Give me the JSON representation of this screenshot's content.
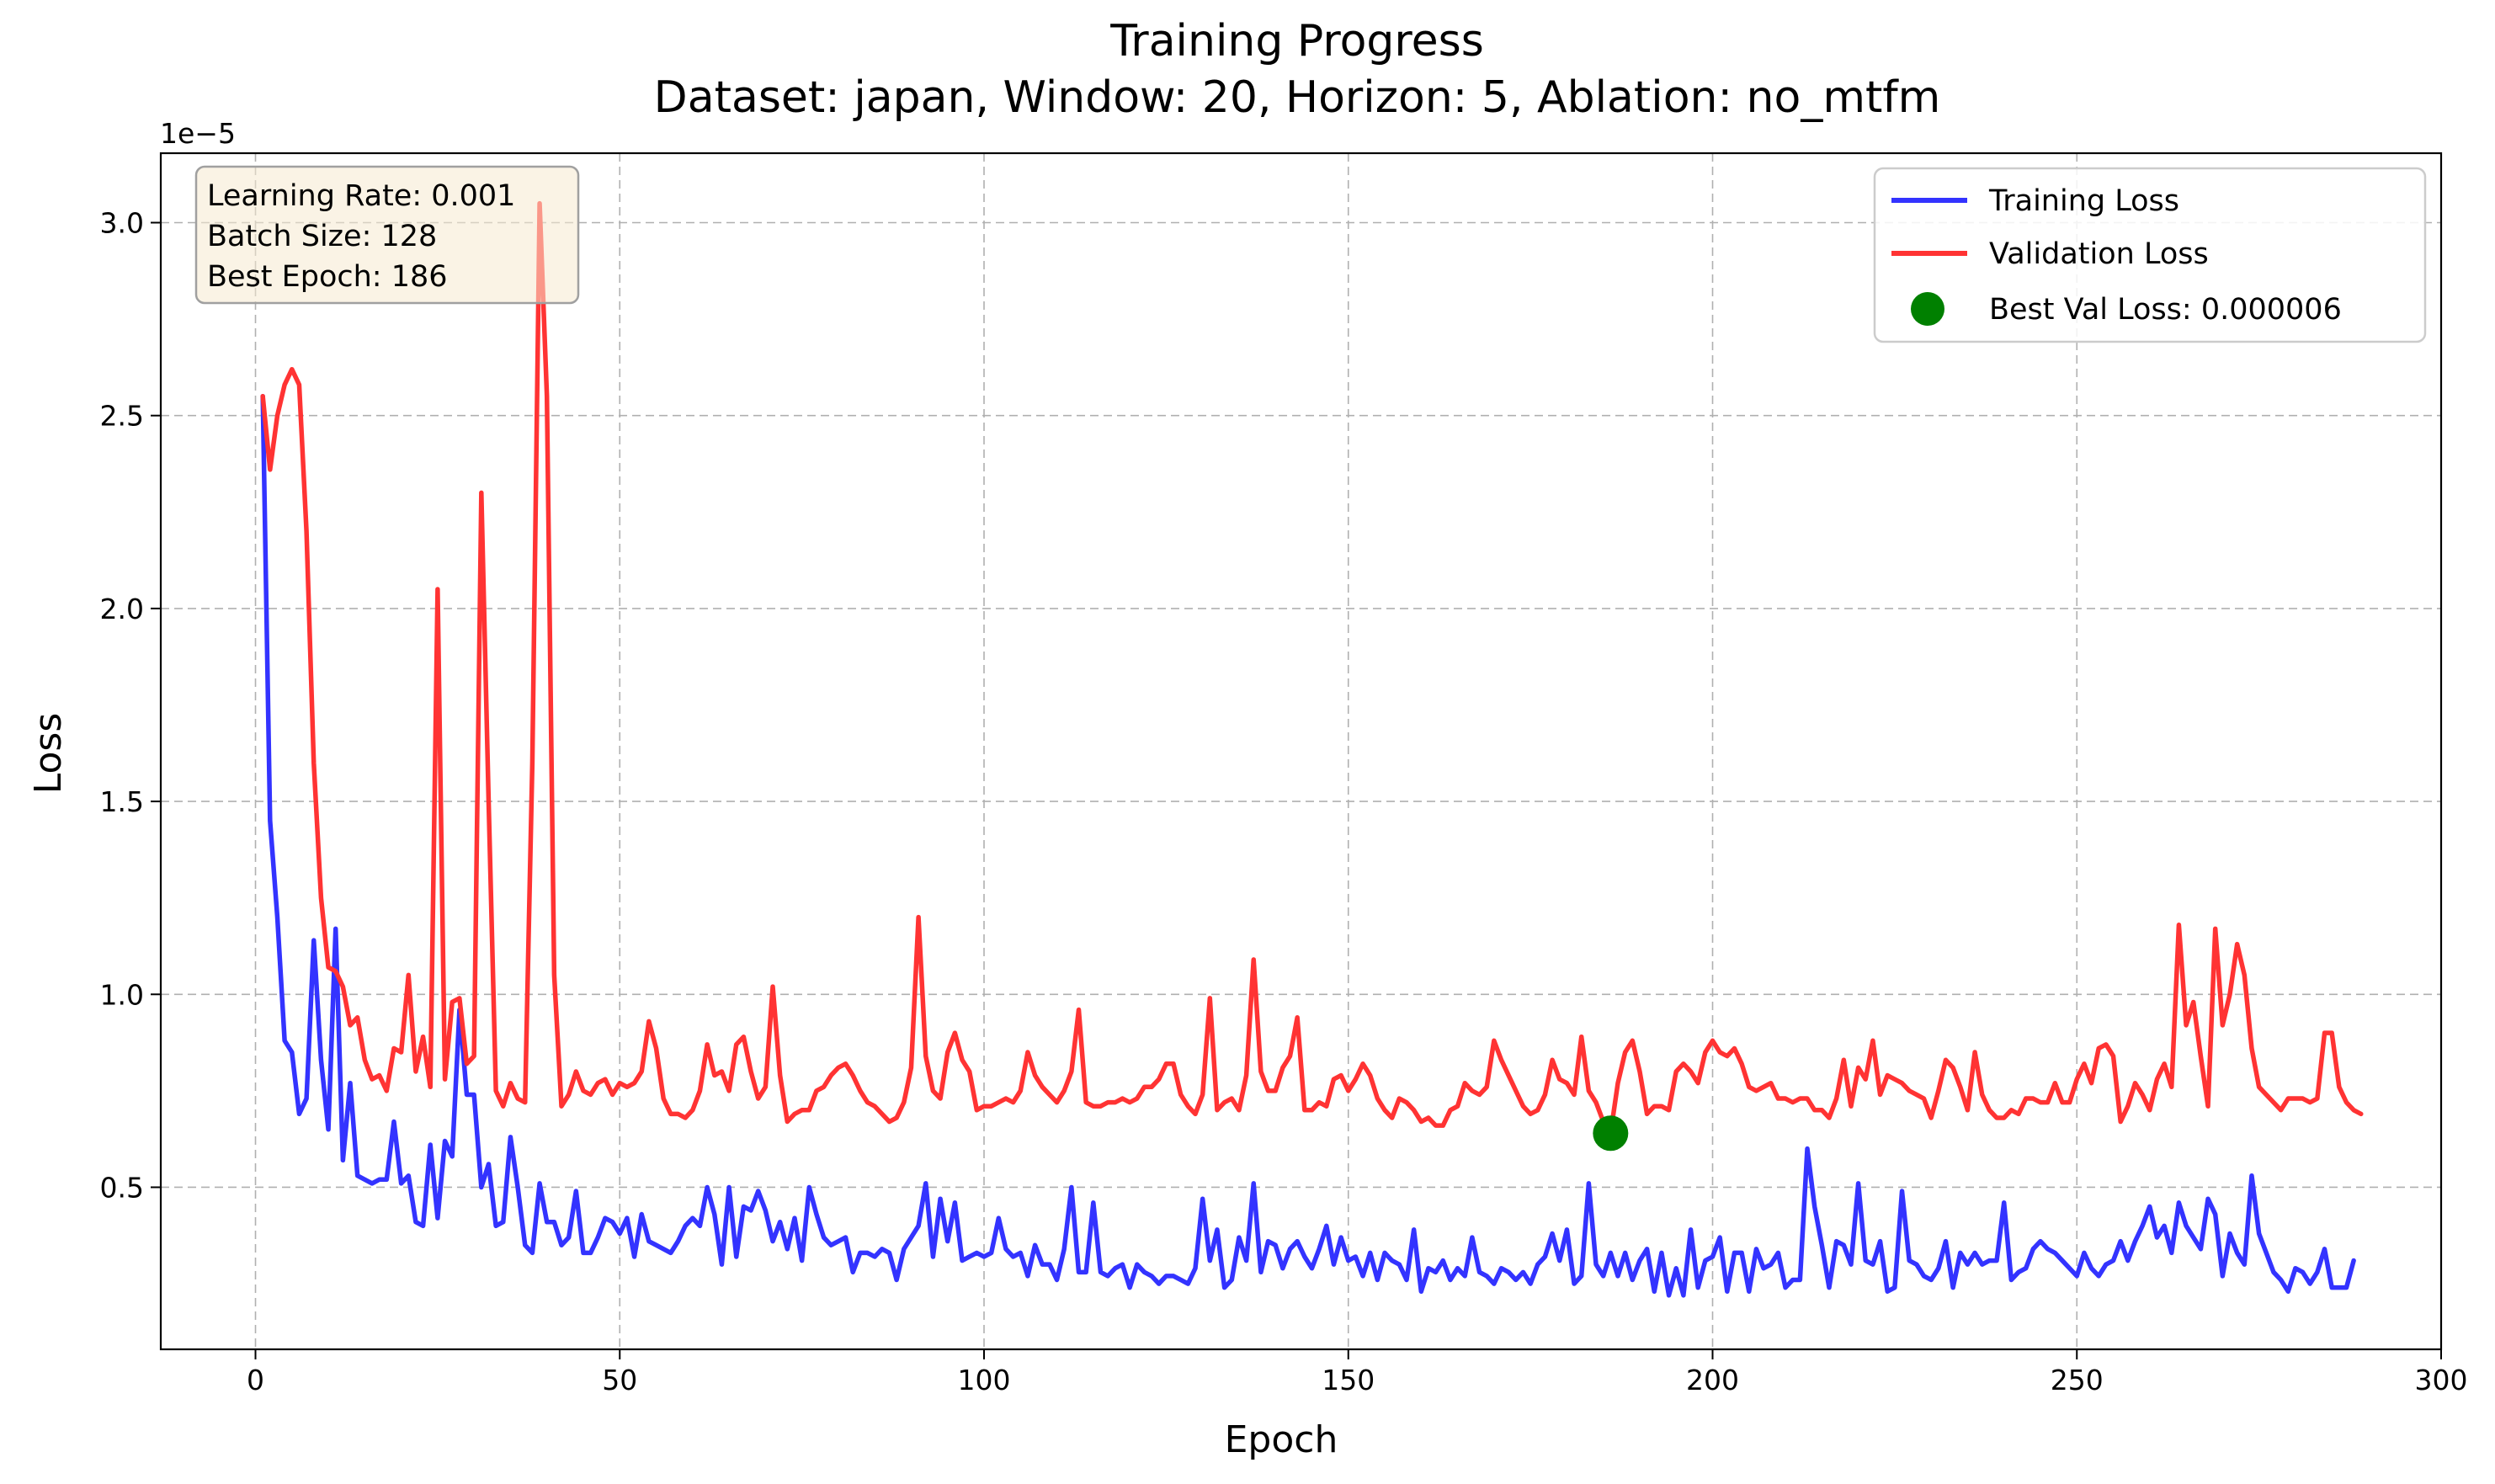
{
  "chart_data": {
    "type": "line",
    "title": "Training Progress",
    "subtitle": "Dataset: japan, Window: 20, Horizon: 5, Ablation: no_mtfm",
    "xlabel": "Epoch",
    "ylabel": "Loss",
    "y_offset_label": "1e−5",
    "y_scale_factor": 1e-05,
    "xlim": [
      -13,
      300
    ],
    "ylim": [
      0.08,
      3.18
    ],
    "x_ticks": [
      0,
      50,
      100,
      150,
      200,
      250,
      300
    ],
    "y_ticks": [
      0.5,
      1.0,
      1.5,
      2.0,
      2.5,
      3.0
    ],
    "x_tick_labels": [
      "0",
      "50",
      "100",
      "150",
      "200",
      "250",
      "300"
    ],
    "y_tick_labels": [
      "0.5",
      "1.0",
      "1.5",
      "2.0",
      "2.5",
      "3.0"
    ],
    "grid": true,
    "legend_position": "top-right",
    "info_box": {
      "position": "top-left",
      "lines": [
        "Learning Rate: 0.001",
        "Batch Size: 128",
        "Best Epoch: 186"
      ]
    },
    "series": [
      {
        "name": "Training Loss",
        "color": "#3333ff",
        "x_start": 1,
        "values": [
          2.55,
          1.45,
          1.2,
          0.88,
          0.85,
          0.69,
          0.73,
          1.14,
          0.83,
          0.65,
          1.17,
          0.57,
          0.77,
          0.53,
          0.52,
          0.51,
          0.52,
          0.52,
          0.67,
          0.51,
          0.53,
          0.41,
          0.4,
          0.61,
          0.42,
          0.62,
          0.58,
          0.96,
          0.74,
          0.74,
          0.5,
          0.56,
          0.4,
          0.41,
          0.63,
          0.5,
          0.35,
          0.33,
          0.51,
          0.41,
          0.41,
          0.35,
          0.37,
          0.49,
          0.33,
          0.33,
          0.37,
          0.42,
          0.41,
          0.38,
          0.42,
          0.32,
          0.43,
          0.36,
          0.35,
          0.34,
          0.33,
          0.36,
          0.4,
          0.42,
          0.4,
          0.5,
          0.43,
          0.3,
          0.5,
          0.32,
          0.45,
          0.44,
          0.49,
          0.44,
          0.36,
          0.41,
          0.34,
          0.42,
          0.31,
          0.5,
          0.43,
          0.37,
          0.35,
          0.36,
          0.37,
          0.28,
          0.33,
          0.33,
          0.32,
          0.34,
          0.33,
          0.26,
          0.34,
          0.37,
          0.4,
          0.51,
          0.32,
          0.47,
          0.36,
          0.46,
          0.31,
          0.32,
          0.33,
          0.32,
          0.33,
          0.42,
          0.34,
          0.32,
          0.33,
          0.27,
          0.35,
          0.3,
          0.3,
          0.26,
          0.34,
          0.5,
          0.28,
          0.28,
          0.46,
          0.28,
          0.27,
          0.29,
          0.3,
          0.24,
          0.3,
          0.28,
          0.27,
          0.25,
          0.27,
          0.27,
          0.26,
          0.25,
          0.29,
          0.47,
          0.31,
          0.39,
          0.24,
          0.26,
          0.37,
          0.31,
          0.51,
          0.28,
          0.36,
          0.35,
          0.29,
          0.34,
          0.36,
          0.32,
          0.29,
          0.34,
          0.4,
          0.3,
          0.37,
          0.31,
          0.32,
          0.27,
          0.33,
          0.26,
          0.33,
          0.31,
          0.3,
          0.26,
          0.39,
          0.23,
          0.29,
          0.28,
          0.31,
          0.26,
          0.29,
          0.27,
          0.37,
          0.28,
          0.27,
          0.25,
          0.29,
          0.28,
          0.26,
          0.28,
          0.25,
          0.3,
          0.32,
          0.38,
          0.31,
          0.39,
          0.25,
          0.27,
          0.51,
          0.3,
          0.27,
          0.33,
          0.27,
          0.33,
          0.26,
          0.31,
          0.34,
          0.23,
          0.33,
          0.22,
          0.29,
          0.22,
          0.39,
          0.24,
          0.31,
          0.32,
          0.37,
          0.23,
          0.33,
          0.33,
          0.23,
          0.34,
          0.29,
          0.3,
          0.33,
          0.24,
          0.26,
          0.26,
          0.6,
          0.45,
          0.35,
          0.24,
          0.36,
          0.35,
          0.3,
          0.51,
          0.31,
          0.3,
          0.36,
          0.23,
          0.24,
          0.49,
          0.31,
          0.3,
          0.27,
          0.26,
          0.29,
          0.36,
          0.24,
          0.33,
          0.3,
          0.33,
          0.3,
          0.31,
          0.31,
          0.46,
          0.26,
          0.28,
          0.29,
          0.34,
          0.36,
          0.34,
          0.33,
          0.31,
          0.29,
          0.27,
          0.33,
          0.29,
          0.27,
          0.3,
          0.31,
          0.36,
          0.31,
          0.36,
          0.4,
          0.45,
          0.37,
          0.4,
          0.33,
          0.46,
          0.4,
          0.37,
          0.34,
          0.47,
          0.43,
          0.27,
          0.38,
          0.33,
          0.3,
          0.53,
          0.38,
          0.33,
          0.28,
          0.26,
          0.23,
          0.29,
          0.28,
          0.25,
          0.28,
          0.34,
          0.24,
          0.24,
          0.24,
          0.31
        ]
      },
      {
        "name": "Validation Loss",
        "color": "#ff3333",
        "x_start": 1,
        "values": [
          2.55,
          2.36,
          2.5,
          2.58,
          2.62,
          2.58,
          2.2,
          1.6,
          1.25,
          1.07,
          1.06,
          1.02,
          0.92,
          0.94,
          0.83,
          0.78,
          0.79,
          0.75,
          0.86,
          0.85,
          1.05,
          0.8,
          0.89,
          0.76,
          2.05,
          0.78,
          0.98,
          0.99,
          0.82,
          0.84,
          2.3,
          1.5,
          0.75,
          0.71,
          0.77,
          0.73,
          0.72,
          1.6,
          3.05,
          2.55,
          1.05,
          0.71,
          0.74,
          0.8,
          0.75,
          0.74,
          0.77,
          0.78,
          0.74,
          0.77,
          0.76,
          0.77,
          0.8,
          0.93,
          0.86,
          0.73,
          0.69,
          0.69,
          0.68,
          0.7,
          0.75,
          0.87,
          0.79,
          0.8,
          0.75,
          0.87,
          0.89,
          0.8,
          0.73,
          0.76,
          1.02,
          0.79,
          0.67,
          0.69,
          0.7,
          0.7,
          0.75,
          0.76,
          0.79,
          0.81,
          0.82,
          0.79,
          0.75,
          0.72,
          0.71,
          0.69,
          0.67,
          0.68,
          0.72,
          0.81,
          1.2,
          0.84,
          0.75,
          0.73,
          0.85,
          0.9,
          0.83,
          0.8,
          0.7,
          0.71,
          0.71,
          0.72,
          0.73,
          0.72,
          0.75,
          0.85,
          0.79,
          0.76,
          0.74,
          0.72,
          0.75,
          0.8,
          0.96,
          0.72,
          0.71,
          0.71,
          0.72,
          0.72,
          0.73,
          0.72,
          0.73,
          0.76,
          0.76,
          0.78,
          0.82,
          0.82,
          0.74,
          0.71,
          0.69,
          0.74,
          0.99,
          0.7,
          0.72,
          0.73,
          0.7,
          0.79,
          1.09,
          0.8,
          0.75,
          0.75,
          0.81,
          0.84,
          0.94,
          0.7,
          0.7,
          0.72,
          0.71,
          0.78,
          0.79,
          0.75,
          0.78,
          0.82,
          0.79,
          0.73,
          0.7,
          0.68,
          0.73,
          0.72,
          0.7,
          0.67,
          0.68,
          0.66,
          0.66,
          0.7,
          0.71,
          0.77,
          0.75,
          0.74,
          0.76,
          0.88,
          0.83,
          0.79,
          0.75,
          0.71,
          0.69,
          0.7,
          0.74,
          0.83,
          0.78,
          0.77,
          0.74,
          0.89,
          0.75,
          0.72,
          0.67,
          0.64,
          0.77,
          0.85,
          0.88,
          0.8,
          0.69,
          0.71,
          0.71,
          0.7,
          0.8,
          0.82,
          0.8,
          0.77,
          0.85,
          0.88,
          0.85,
          0.84,
          0.86,
          0.82,
          0.76,
          0.75,
          0.76,
          0.77,
          0.73,
          0.73,
          0.72,
          0.73,
          0.73,
          0.7,
          0.7,
          0.68,
          0.73,
          0.83,
          0.71,
          0.81,
          0.78,
          0.88,
          0.74,
          0.79,
          0.78,
          0.77,
          0.75,
          0.74,
          0.73,
          0.68,
          0.75,
          0.83,
          0.81,
          0.76,
          0.7,
          0.85,
          0.74,
          0.7,
          0.68,
          0.68,
          0.7,
          0.69,
          0.73,
          0.73,
          0.72,
          0.72,
          0.77,
          0.72,
          0.72,
          0.78,
          0.82,
          0.77,
          0.86,
          0.87,
          0.84,
          0.67,
          0.71,
          0.77,
          0.74,
          0.7,
          0.78,
          0.82,
          0.76,
          1.18,
          0.92,
          0.98,
          0.84,
          0.71,
          1.17,
          0.92,
          1.0,
          1.13,
          1.05,
          0.86,
          0.76,
          0.74,
          0.72,
          0.7,
          0.73,
          0.73,
          0.73,
          0.72,
          0.73,
          0.9,
          0.9,
          0.76,
          0.72,
          0.7,
          0.69
        ]
      }
    ],
    "best_point": {
      "name": "Best Val Loss: 0.000006",
      "color": "#008000",
      "x": 186,
      "y": 0.64
    }
  }
}
